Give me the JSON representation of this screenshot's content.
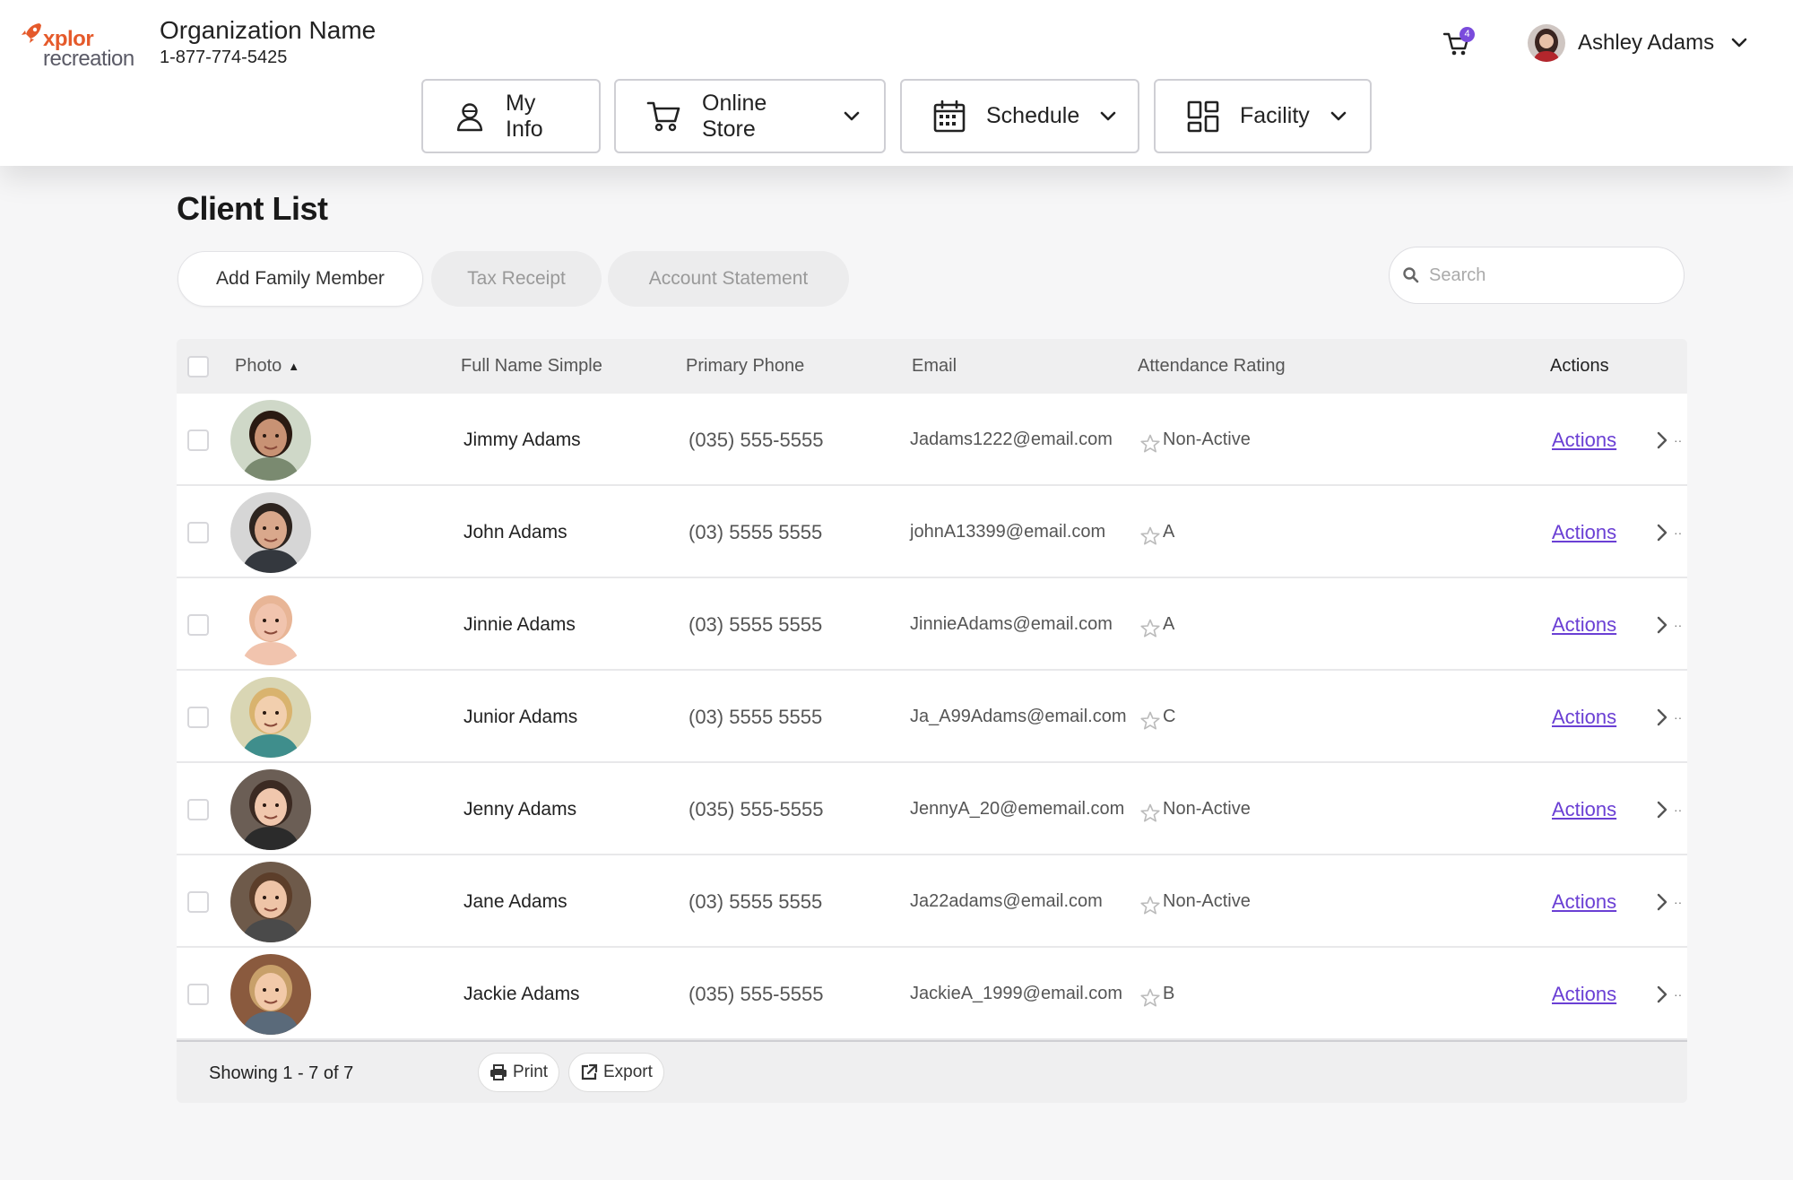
{
  "brand": {
    "logo_top": "xplor",
    "logo_bottom": "recreation",
    "accent": "#e55a2b"
  },
  "org": {
    "name": "Organization Name",
    "phone": "1-877-774-5425"
  },
  "cart": {
    "icon": "cart-icon",
    "badge": "4"
  },
  "user": {
    "name": "Ashley Adams",
    "icon": "chevron-down-icon"
  },
  "nav": [
    {
      "label": "My Info",
      "icon": "user-icon"
    },
    {
      "label": "Online Store",
      "icon": "cart-icon"
    },
    {
      "label": "Schedule",
      "icon": "calendar-icon"
    },
    {
      "label": "Facility",
      "icon": "dashboard-icon"
    }
  ],
  "page": {
    "title": "Client List",
    "buttons": {
      "add_family": "Add Family Member",
      "tax_receipt": "Tax Receipt",
      "account_statement": "Account Statement"
    },
    "search_placeholder": "Search"
  },
  "table": {
    "headers": {
      "photo": "Photo",
      "full_name": "Full Name Simple",
      "phone": "Primary Phone",
      "email": "Email",
      "attendance": "Attendance Rating",
      "actions": "Actions"
    },
    "sort_indicator": "▲",
    "rows": [
      {
        "name": "Jimmy Adams",
        "phone": "(035) 555-5555",
        "email": "Jadams1222@email.com",
        "rating": "Non-Active",
        "action": "Actions"
      },
      {
        "name": "John Adams",
        "phone": "(03) 5555 5555",
        "email": "johnA13399@email.com",
        "rating": "A",
        "action": "Actions"
      },
      {
        "name": "Jinnie Adams",
        "phone": "(03) 5555 5555",
        "email": "JinnieAdams@email.com",
        "rating": "A",
        "action": "Actions"
      },
      {
        "name": "Junior Adams",
        "phone": "(03) 5555 5555",
        "email": "Ja_A99Adams@email.com",
        "rating": "C",
        "action": "Actions"
      },
      {
        "name": "Jenny Adams",
        "phone": "(035) 555-5555",
        "email": "JennyA_20@ememail.com",
        "rating": "Non-Active",
        "action": "Actions"
      },
      {
        "name": "Jane Adams",
        "phone": "(03) 5555 5555",
        "email": "Ja22adams@email.com",
        "rating": "Non-Active",
        "action": "Actions"
      },
      {
        "name": "Jackie Adams",
        "phone": "(035) 555-5555",
        "email": "JackieA_1999@email.com",
        "rating": "B",
        "action": "Actions"
      }
    ],
    "footer": {
      "showing": "Showing 1 - 7 of 7",
      "print": "Print",
      "export": "Export"
    }
  }
}
